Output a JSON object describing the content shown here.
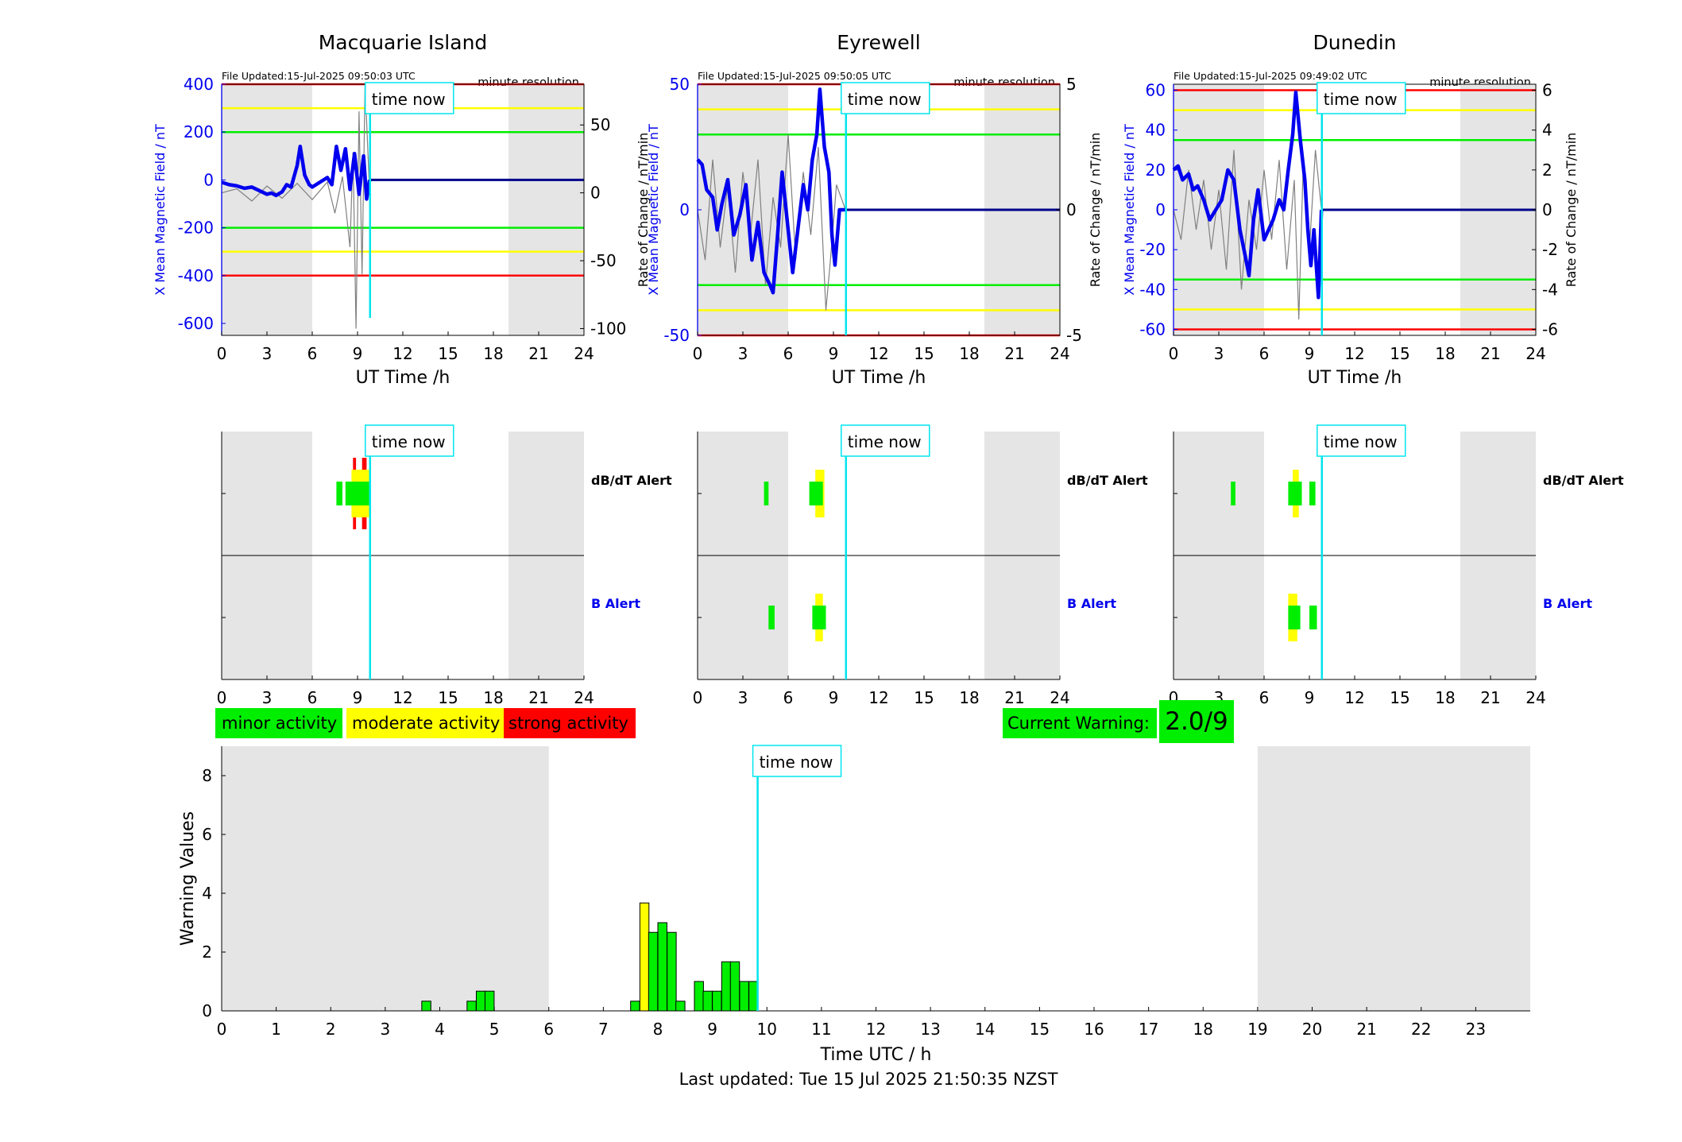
{
  "stations": [
    {
      "title": "Macquarie Island",
      "file_updated": "File Updated:15-Jul-2025 09:50:03 UTC",
      "resolution": "minute resolution",
      "left_ylabel": "X Mean Magnetic Field / nT",
      "right_ylabel": "Rate of Change / nT/min",
      "xlabel": "UT Time /h",
      "ylim": [
        -650,
        400
      ],
      "yticks": [
        "400",
        "200",
        "0",
        "-200",
        "-400",
        "-600"
      ],
      "ytick_values": [
        400,
        200,
        0,
        -200,
        -400,
        -600
      ],
      "rate_ylim": [
        -105,
        80
      ],
      "rate_ticks": [
        "50",
        "0",
        "-50",
        "-100"
      ],
      "rate_tick_values": [
        50,
        0,
        -50,
        -100
      ],
      "thresholds": {
        "red": 400,
        "yellow": 300,
        "green": 200
      },
      "x_field": [
        0,
        0.5,
        1,
        1.5,
        2,
        2.5,
        3,
        3.3,
        3.6,
        4,
        4.3,
        4.6,
        5,
        5.2,
        5.5,
        5.8,
        6,
        6.5,
        7,
        7.3,
        7.6,
        7.9,
        8.2,
        8.5,
        8.8,
        9.1,
        9.4,
        9.6,
        9.8
      ],
      "y_field": [
        -10,
        -20,
        -25,
        -35,
        -30,
        -45,
        -60,
        -55,
        -65,
        -50,
        -20,
        -30,
        60,
        140,
        20,
        -20,
        -30,
        -10,
        10,
        -20,
        140,
        40,
        130,
        -40,
        110,
        -60,
        100,
        -80,
        0
      ],
      "x_rate": [
        0,
        1,
        2,
        3,
        4,
        5,
        6,
        7,
        7.5,
        8,
        8.5,
        8.7,
        8.9,
        9.1,
        9.3,
        9.5,
        9.8
      ],
      "y_rate": [
        0,
        3,
        -6,
        5,
        -4,
        7,
        -5,
        8,
        -15,
        12,
        -40,
        30,
        -100,
        60,
        -60,
        80,
        0
      ],
      "dbdt_bars": [
        {
          "start": 7.6,
          "end": 8.0,
          "level": "green",
          "lo": -0.5,
          "hi": 0.5
        },
        {
          "start": 8.2,
          "end": 9.8,
          "level": "green",
          "lo": -0.5,
          "hi": 0.5
        },
        {
          "start": 8.6,
          "end": 9.8,
          "level": "yellow",
          "lo": -1.0,
          "hi": 1.0
        },
        {
          "start": 8.7,
          "end": 8.9,
          "level": "red",
          "lo": -1.5,
          "hi": 1.5
        },
        {
          "start": 9.3,
          "end": 9.6,
          "level": "red",
          "lo": -1.5,
          "hi": 1.5
        }
      ],
      "b_bars": []
    },
    {
      "title": "Eyrewell",
      "file_updated": "File Updated:15-Jul-2025 09:50:05 UTC",
      "resolution": "minute resolution",
      "left_ylabel": "X Mean Magnetic Field / nT",
      "right_ylabel": "Rate of Change / nT/min",
      "xlabel": "UT Time /h",
      "ylim": [
        -50,
        50
      ],
      "yticks": [
        "50",
        "0",
        "-50"
      ],
      "ytick_values": [
        50,
        0,
        -50
      ],
      "rate_ylim": [
        -5,
        5
      ],
      "rate_ticks": [
        "5",
        "0",
        "-5"
      ],
      "rate_tick_values": [
        5,
        0,
        -5
      ],
      "thresholds": {
        "red": 50,
        "yellow": 40,
        "green": 30
      },
      "x_field": [
        0,
        0.3,
        0.6,
        1,
        1.3,
        1.6,
        2,
        2.4,
        2.8,
        3.2,
        3.6,
        4,
        4.4,
        4.8,
        5,
        5.3,
        5.6,
        6,
        6.3,
        6.6,
        7,
        7.3,
        7.6,
        7.9,
        8.1,
        8.4,
        8.7,
        8.9,
        9.1,
        9.4,
        9.8
      ],
      "y_field": [
        20,
        18,
        8,
        5,
        -8,
        2,
        12,
        -10,
        -2,
        10,
        -20,
        -5,
        -25,
        -30,
        -33,
        -10,
        15,
        -8,
        -25,
        -10,
        10,
        0,
        20,
        30,
        48,
        25,
        15,
        -10,
        -22,
        0,
        0
      ],
      "x_rate": [
        0,
        0.5,
        1,
        1.5,
        2,
        2.5,
        3,
        3.5,
        4,
        4.5,
        5,
        5.5,
        6,
        6.5,
        7,
        7.5,
        8,
        8.5,
        8.8,
        9.2,
        9.8
      ],
      "y_rate": [
        0,
        -2,
        2,
        -1.5,
        1,
        -2.5,
        1.5,
        -1,
        2,
        -3,
        0.5,
        -1.5,
        3,
        -2,
        1.5,
        -1,
        2.5,
        -4,
        -2,
        1,
        0
      ],
      "dbdt_bars": [
        {
          "start": 4.4,
          "end": 4.7,
          "level": "green",
          "lo": -0.5,
          "hi": 0.5
        },
        {
          "start": 7.8,
          "end": 8.4,
          "level": "yellow",
          "lo": -1.0,
          "hi": 1.0
        },
        {
          "start": 7.4,
          "end": 8.3,
          "level": "green",
          "lo": -0.5,
          "hi": 0.5
        }
      ],
      "b_bars": [
        {
          "start": 4.7,
          "end": 5.1,
          "level": "green",
          "lo": -0.5,
          "hi": 0.5
        },
        {
          "start": 7.8,
          "end": 8.3,
          "level": "yellow",
          "lo": -1.0,
          "hi": 1.0
        },
        {
          "start": 7.6,
          "end": 8.5,
          "level": "green",
          "lo": -0.5,
          "hi": 0.5
        }
      ]
    },
    {
      "title": "Dunedin",
      "file_updated": "File Updated:15-Jul-2025 09:49:02 UTC",
      "resolution": "minute resolution",
      "left_ylabel": "X Mean Magnetic Field / nT",
      "right_ylabel": "Rate of Change / nT/min",
      "xlabel": "UT Time /h",
      "ylim": [
        -63,
        63
      ],
      "yticks": [
        "60",
        "40",
        "20",
        "0",
        "-20",
        "-40",
        "-60"
      ],
      "ytick_values": [
        60,
        40,
        20,
        0,
        -20,
        -40,
        -60
      ],
      "rate_ylim": [
        -6.3,
        6.3
      ],
      "rate_ticks": [
        "6",
        "4",
        "2",
        "0",
        "-2",
        "-4",
        "-6"
      ],
      "rate_tick_values": [
        6,
        4,
        2,
        0,
        -2,
        -4,
        -6
      ],
      "thresholds": {
        "red": 60,
        "yellow": 50,
        "green": 35
      },
      "x_field": [
        0,
        0.3,
        0.6,
        1,
        1.3,
        1.6,
        2,
        2.4,
        2.8,
        3.2,
        3.6,
        4,
        4.4,
        4.8,
        5,
        5.3,
        5.6,
        6,
        6.3,
        6.6,
        7,
        7.3,
        7.6,
        7.9,
        8.1,
        8.4,
        8.7,
        8.9,
        9.1,
        9.3,
        9.6,
        9.8
      ],
      "y_field": [
        20,
        22,
        15,
        18,
        10,
        12,
        5,
        -5,
        0,
        5,
        20,
        15,
        -10,
        -25,
        -33,
        -5,
        10,
        -15,
        -10,
        -5,
        5,
        0,
        20,
        38,
        59,
        35,
        15,
        -10,
        -28,
        -10,
        -44,
        0
      ],
      "x_rate": [
        0,
        0.5,
        1,
        1.5,
        2,
        2.5,
        3,
        3.5,
        4,
        4.5,
        5,
        5.5,
        6,
        6.5,
        7,
        7.5,
        8,
        8.3,
        8.6,
        9,
        9.4,
        9.8
      ],
      "y_rate": [
        0,
        -1.5,
        2,
        -1,
        1.5,
        -2,
        1,
        -3,
        3,
        -4,
        0.5,
        -2,
        2,
        -1.5,
        2.5,
        -3,
        1.5,
        -5.5,
        2.5,
        -2,
        3,
        0
      ],
      "dbdt_bars": [
        {
          "start": 3.8,
          "end": 4.1,
          "level": "green",
          "lo": -0.5,
          "hi": 0.5
        },
        {
          "start": 7.9,
          "end": 8.3,
          "level": "yellow",
          "lo": -1.0,
          "hi": 1.0
        },
        {
          "start": 7.6,
          "end": 8.5,
          "level": "green",
          "lo": -0.5,
          "hi": 0.5
        },
        {
          "start": 9.0,
          "end": 9.4,
          "level": "green",
          "lo": -0.5,
          "hi": 0.5
        }
      ],
      "b_bars": [
        {
          "start": 7.6,
          "end": 8.2,
          "level": "yellow",
          "lo": -1.0,
          "hi": 1.0
        },
        {
          "start": 7.6,
          "end": 8.4,
          "level": "green",
          "lo": -0.5,
          "hi": 0.5
        },
        {
          "start": 9.0,
          "end": 9.5,
          "level": "green",
          "lo": -0.5,
          "hi": 0.5
        }
      ]
    }
  ],
  "common": {
    "time_now_label": "time now",
    "time_now_hour": 9.83,
    "shade_ranges": [
      [
        0,
        6
      ],
      [
        19,
        24
      ]
    ],
    "xticks": [
      0,
      3,
      6,
      9,
      12,
      15,
      18,
      21,
      24
    ],
    "xtick_labels": [
      "0",
      "3",
      "6",
      "9",
      "12",
      "15",
      "18",
      "21",
      "24"
    ]
  },
  "alert_labels": {
    "dbdt": "dB/dT Alert",
    "b": "B Alert"
  },
  "legend": {
    "minor": "minor activity",
    "moderate": "moderate activity",
    "strong": "strong activity"
  },
  "current_warning": {
    "label": "Current Warning:",
    "value": "2.0/9"
  },
  "colors": {
    "green": "#00ee00",
    "yellow": "#ffff00",
    "red": "#ff0000",
    "blue": "#0000ee",
    "cyan": "#00e5ee",
    "shade": "#e5e5e5",
    "rate_line": "#808080"
  },
  "chart_data": {
    "type": "bar",
    "title": "",
    "xlabel": "Time UTC / h",
    "ylabel": "Warning Values",
    "xlim": [
      0,
      24
    ],
    "ylim": [
      0,
      9
    ],
    "xticks": [
      "0",
      "1",
      "2",
      "3",
      "4",
      "5",
      "6",
      "7",
      "8",
      "9",
      "10",
      "11",
      "12",
      "13",
      "14",
      "15",
      "16",
      "17",
      "18",
      "19",
      "20",
      "21",
      "22",
      "23"
    ],
    "yticks": [
      "0",
      "2",
      "4",
      "6",
      "8"
    ],
    "bar_width_h": 0.1667,
    "bars": [
      {
        "x": 3.67,
        "value": 0.33,
        "level": "green"
      },
      {
        "x": 4.5,
        "value": 0.33,
        "level": "green"
      },
      {
        "x": 4.67,
        "value": 0.67,
        "level": "green"
      },
      {
        "x": 4.83,
        "value": 0.67,
        "level": "green"
      },
      {
        "x": 7.5,
        "value": 0.33,
        "level": "green"
      },
      {
        "x": 7.67,
        "value": 3.67,
        "level": "yellow"
      },
      {
        "x": 7.83,
        "value": 2.67,
        "level": "green"
      },
      {
        "x": 8.0,
        "value": 3.0,
        "level": "green"
      },
      {
        "x": 8.17,
        "value": 2.67,
        "level": "green"
      },
      {
        "x": 8.33,
        "value": 0.33,
        "level": "green"
      },
      {
        "x": 8.67,
        "value": 1.0,
        "level": "green"
      },
      {
        "x": 8.83,
        "value": 0.67,
        "level": "green"
      },
      {
        "x": 9.0,
        "value": 0.67,
        "level": "green"
      },
      {
        "x": 9.17,
        "value": 1.67,
        "level": "green"
      },
      {
        "x": 9.33,
        "value": 1.67,
        "level": "green"
      },
      {
        "x": 9.5,
        "value": 1.0,
        "level": "green"
      },
      {
        "x": 9.67,
        "value": 1.0,
        "level": "green"
      }
    ],
    "time_now_label": "time now",
    "time_now_hour": 9.83,
    "shade_ranges": [
      [
        0,
        6
      ],
      [
        19,
        24
      ]
    ]
  },
  "footer": "Last updated: Tue 15 Jul 2025 21:50:35 NZST"
}
